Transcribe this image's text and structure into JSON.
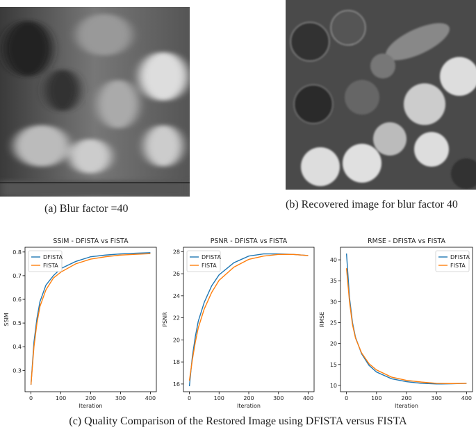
{
  "figures": [
    {
      "caption": "(a) Blur factor =40"
    },
    {
      "caption": "(b) Recovered image for blur factor 40"
    }
  ],
  "caption": "(c) Quality Comparison of the Restored Image using DFISTA versus FISTA",
  "chart_data": [
    {
      "type": "line",
      "title": "SSIM - DFISTA vs FISTA",
      "x_label": "Iteration",
      "y_label": "SSIM",
      "x": [
        0,
        10,
        20,
        30,
        50,
        75,
        100,
        150,
        200,
        250,
        300,
        350,
        400
      ],
      "series": [
        {
          "name": "DFISTA",
          "color": "#1f77b4",
          "values": [
            0.24,
            0.42,
            0.52,
            0.59,
            0.66,
            0.7,
            0.73,
            0.76,
            0.78,
            0.787,
            0.792,
            0.795,
            0.797
          ]
        },
        {
          "name": "FISTA",
          "color": "#ff7f0e",
          "values": [
            0.24,
            0.4,
            0.5,
            0.57,
            0.64,
            0.69,
            0.715,
            0.75,
            0.77,
            0.78,
            0.787,
            0.79,
            0.793
          ]
        }
      ],
      "xlim": [
        -20,
        420
      ],
      "ylim": [
        0.21,
        0.82
      ],
      "xticks": [
        0,
        100,
        200,
        300,
        400
      ],
      "yticks": [
        0.3,
        0.4,
        0.5,
        0.6,
        0.7,
        0.8
      ],
      "legend": "upper left"
    },
    {
      "type": "line",
      "title": "PSNR - DFISTA vs FISTA",
      "x_label": "Iteration",
      "y_label": "PSNR",
      "x": [
        0,
        10,
        20,
        30,
        50,
        75,
        100,
        150,
        200,
        250,
        300,
        350,
        400
      ],
      "series": [
        {
          "name": "DFISTA",
          "color": "#1f77b4",
          "values": [
            15.8,
            18.5,
            20.3,
            21.7,
            23.4,
            24.9,
            25.9,
            27.0,
            27.6,
            27.8,
            27.8,
            27.75,
            27.65
          ]
        },
        {
          "name": "FISTA",
          "color": "#ff7f0e",
          "values": [
            16.3,
            18.2,
            19.8,
            21.1,
            22.8,
            24.3,
            25.4,
            26.6,
            27.3,
            27.6,
            27.75,
            27.75,
            27.65
          ]
        }
      ],
      "xlim": [
        -20,
        420
      ],
      "ylim": [
        15.3,
        28.4
      ],
      "xticks": [
        0,
        100,
        200,
        300,
        400
      ],
      "yticks": [
        16,
        18,
        20,
        22,
        24,
        26,
        28
      ],
      "legend": "upper left"
    },
    {
      "type": "line",
      "title": "RMSE - DFISTA vs FISTA",
      "x_label": "Iteration",
      "y_label": "RMSE",
      "x": [
        0,
        10,
        20,
        30,
        50,
        75,
        100,
        150,
        200,
        250,
        300,
        350,
        400
      ],
      "series": [
        {
          "name": "DFISTA",
          "color": "#1f77b4",
          "values": [
            41.5,
            31,
            25,
            21.5,
            17.6,
            14.8,
            13.2,
            11.6,
            10.9,
            10.5,
            10.35,
            10.4,
            10.5
          ]
        },
        {
          "name": "FISTA",
          "color": "#ff7f0e",
          "values": [
            38,
            30,
            24.5,
            21.3,
            17.8,
            15.2,
            13.7,
            12.0,
            11.2,
            10.8,
            10.5,
            10.45,
            10.5
          ]
        }
      ],
      "xlim": [
        -20,
        420
      ],
      "ylim": [
        8.5,
        43
      ],
      "xticks": [
        0,
        100,
        200,
        300,
        400
      ],
      "yticks": [
        10,
        15,
        20,
        25,
        30,
        35,
        40
      ],
      "legend": "upper right"
    }
  ]
}
